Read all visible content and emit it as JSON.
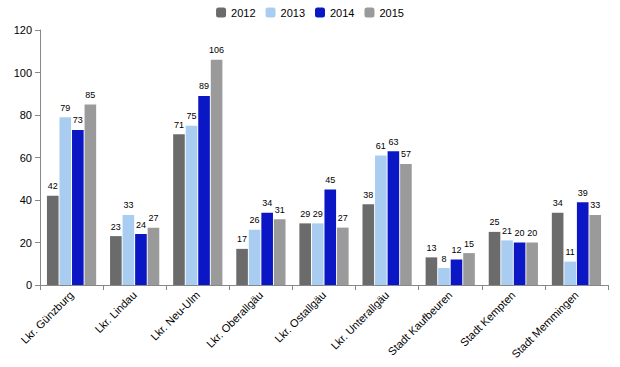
{
  "chart_data": {
    "type": "bar",
    "categories": [
      "Lkr. Günzburg",
      "Lkr. Lindau",
      "Lkr. Neu-Ulm",
      "Lkr. Oberallgäu",
      "Lkr. Ostallgäu",
      "Lkr. Unterallgäu",
      "Stadt Kaufbeuren",
      "Stadt Kempten",
      "Stadt Memmingen"
    ],
    "series": [
      {
        "name": "2012",
        "color": "#6b6b6b",
        "values": [
          42,
          23,
          71,
          17,
          29,
          38,
          13,
          25,
          34
        ]
      },
      {
        "name": "2013",
        "color": "#a9cdf0",
        "values": [
          79,
          33,
          75,
          26,
          29,
          61,
          8,
          21,
          11
        ]
      },
      {
        "name": "2014",
        "color": "#0b16c4",
        "values": [
          73,
          24,
          89,
          34,
          45,
          63,
          12,
          20,
          39
        ]
      },
      {
        "name": "2015",
        "color": "#9a9a9a",
        "values": [
          85,
          27,
          106,
          31,
          27,
          57,
          15,
          20,
          33
        ]
      }
    ],
    "ylim": [
      0,
      120
    ],
    "yticks": [
      0,
      20,
      40,
      60,
      80,
      100,
      120
    ],
    "grid": false,
    "legend": "top",
    "data_labels": true
  }
}
